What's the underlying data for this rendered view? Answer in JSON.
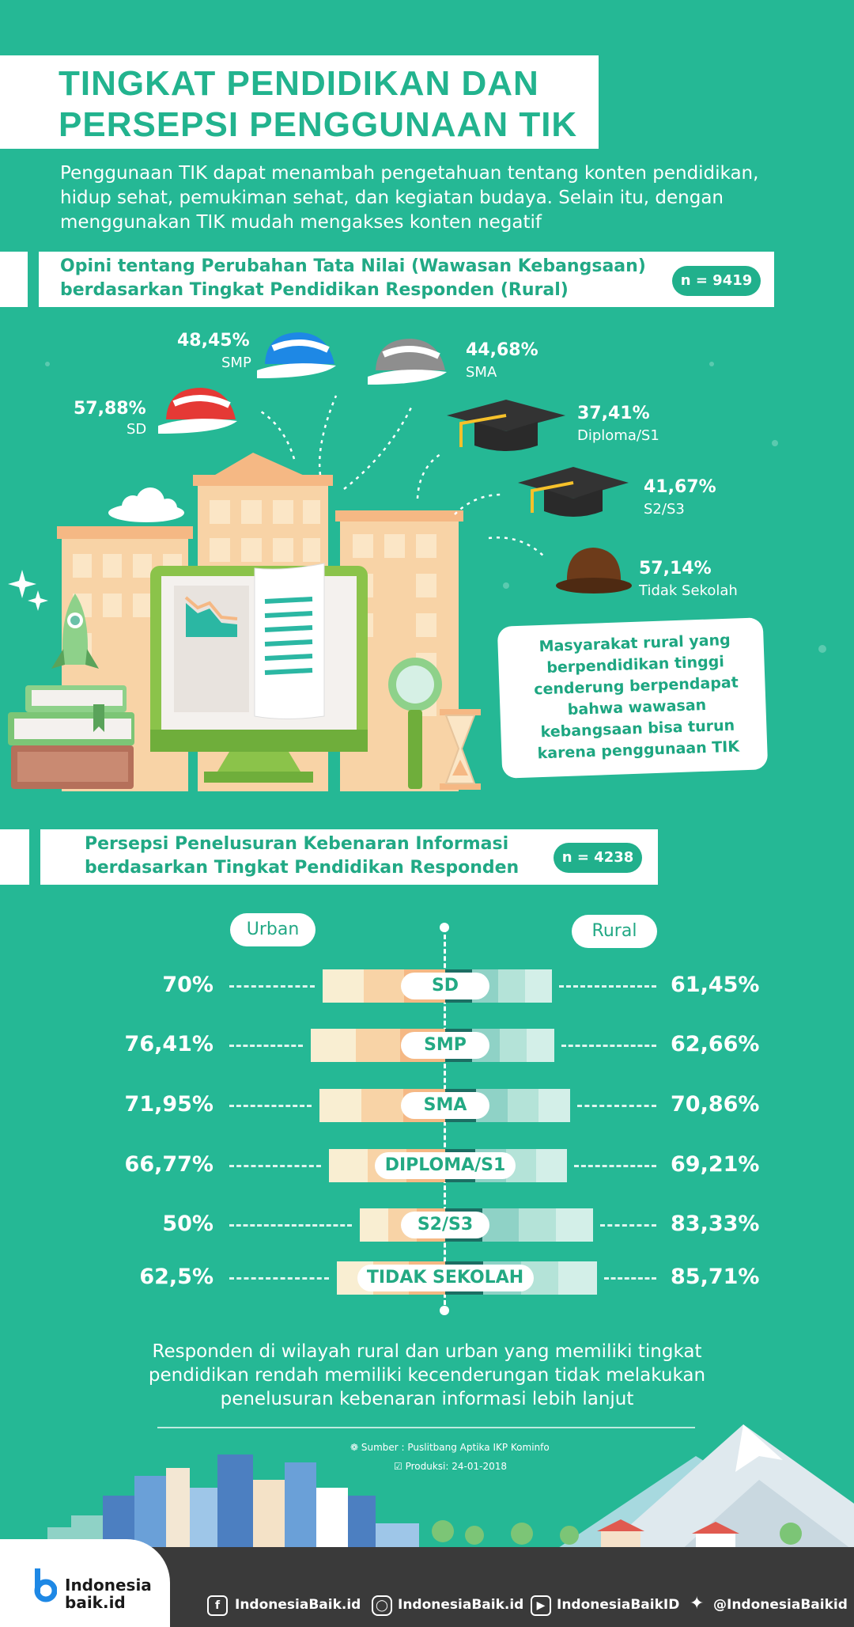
{
  "header": {
    "title_line1": "TINGKAT PENDIDIKAN DAN",
    "title_line2": "PERSEPSI PENGGUNAAN TIK",
    "intro": "Penggunaan TIK dapat menambah pengetahuan tentang konten pendidikan, hidup sehat, pemukiman sehat, dan kegiatan budaya. Selain itu, dengan menggunakan TIK mudah mengakses konten negatif"
  },
  "section1": {
    "title_line1": "Opini tentang Perubahan Tata Nilai (Wawasan Kebangsaan)",
    "title_line2": "berdasarkan Tingkat Pendidikan Responden (Rural)",
    "n": "n = 9419",
    "items": [
      {
        "pct": "57,88%",
        "label": "SD"
      },
      {
        "pct": "48,45%",
        "label": "SMP"
      },
      {
        "pct": "44,68%",
        "label": "SMA"
      },
      {
        "pct": "37,41%",
        "label": "Diploma/S1"
      },
      {
        "pct": "41,67%",
        "label": "S2/S3"
      },
      {
        "pct": "57,14%",
        "label": "Tidak Sekolah"
      }
    ],
    "callout": "Masyarakat rural yang berpendidikan tinggi cenderung berpendapat bahwa wawasan kebangsaan bisa turun karena penggunaan TIK"
  },
  "section2": {
    "title_line1": "Persepsi Penelusuran Kebenaran Informasi",
    "title_line2": "berdasarkan Tingkat Pendidikan Responden",
    "n": "n = 4238",
    "urban_label": "Urban",
    "rural_label": "Rural",
    "rows": [
      {
        "label": "SD",
        "urban_text": "70%",
        "rural_text": "61,45%",
        "urban": 70,
        "rural": 61.45
      },
      {
        "label": "SMP",
        "urban_text": "76,41%",
        "rural_text": "62,66%",
        "urban": 76.41,
        "rural": 62.66
      },
      {
        "label": "SMA",
        "urban_text": "71,95%",
        "rural_text": "70,86%",
        "urban": 71.95,
        "rural": 70.86
      },
      {
        "label": "DIPLOMA/S1",
        "urban_text": "66,77%",
        "rural_text": "69,21%",
        "urban": 66.77,
        "rural": 69.21
      },
      {
        "label": "S2/S3",
        "urban_text": "50%",
        "rural_text": "83,33%",
        "urban": 50,
        "rural": 83.33
      },
      {
        "label": "TIDAK SEKOLAH",
        "urban_text": "62,5%",
        "rural_text": "85,71%",
        "urban": 62.5,
        "rural": 85.71
      }
    ],
    "closing": "Responden di wilayah rural dan urban yang memiliki tingkat pendidikan rendah memiliki kecenderungan tidak melakukan penelusuran kebenaran informasi lebih lanjut"
  },
  "source": {
    "sumber": "Sumber : Puslitbang Aptika IKP Kominfo",
    "produksi": "Produksi:  24-01-2018"
  },
  "footer": {
    "logo_line1": "Indonesia",
    "logo_line2": "baik.id",
    "facebook": "IndonesiaBaik.id",
    "instagram": "IndonesiaBaik.id",
    "youtube": "IndonesiaBaikID",
    "twitter": "@IndonesiaBaikid"
  },
  "colors": {
    "background": "#25b895",
    "accent": "#21a985",
    "urban_bar": [
      "#f9eed2",
      "#f8d3a6",
      "#f5b884"
    ],
    "rural_bar": [
      "#1c6e63",
      "#8fd2c6",
      "#b4e3d8",
      "#d3efe8"
    ]
  }
}
